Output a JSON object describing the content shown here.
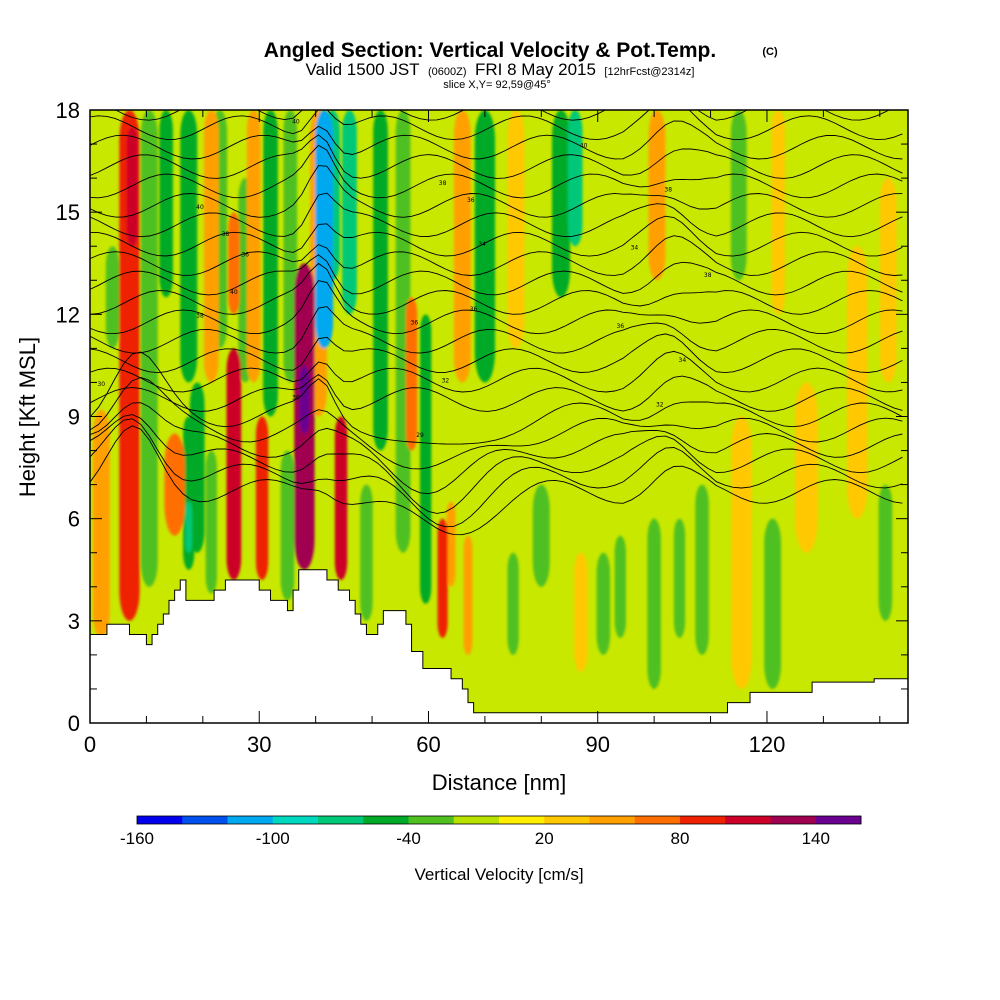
{
  "chart_data": {
    "type": "heatmap",
    "title": "Angled Section: Vertical Velocity & Pot.Temp.",
    "title_unit": "(C)",
    "subtitle": {
      "valid_label": "Valid 1500 JST",
      "utc": "(0600Z)",
      "date": "FRI 8 May 2015",
      "forecast": "[12hrFcst@2314z]"
    },
    "slice_label": "slice X,Y= 92,59@45°",
    "xlabel": "Distance [nm]",
    "ylabel": "Height [Kft MSL]",
    "xlim": [
      0,
      145
    ],
    "ylim": [
      0,
      18
    ],
    "x_ticks": [
      0,
      30,
      60,
      90,
      120
    ],
    "y_ticks": [
      0,
      3,
      6,
      9,
      12,
      15,
      18
    ],
    "colorbar": {
      "title": "Vertical Velocity [cm/s]",
      "range": [
        -160,
        160
      ],
      "step": 20,
      "tick_values": [
        -160,
        -100,
        -40,
        20,
        80,
        140
      ],
      "tick_labels": [
        "-160",
        "-100",
        "-40",
        "20",
        "80",
        "140"
      ],
      "colors": [
        "#0000ee",
        "#0050ee",
        "#00a8f0",
        "#00d8c0",
        "#00c878",
        "#00aa28",
        "#50c020",
        "#b8e000",
        "#ffee00",
        "#ffc800",
        "#ffa000",
        "#ff6e00",
        "#ee2200",
        "#cc0028",
        "#a00050",
        "#6a0090"
      ]
    },
    "terrain": {
      "x": [
        0,
        3,
        3,
        7,
        7,
        10,
        10,
        11,
        11,
        12,
        12,
        13,
        13,
        14,
        14,
        15,
        15,
        16,
        16,
        17,
        17,
        22,
        22,
        24,
        24,
        26,
        26,
        30,
        30,
        32,
        32,
        35,
        35,
        36,
        36,
        37,
        37,
        42,
        42,
        44,
        44,
        46,
        46,
        47,
        47,
        48,
        48,
        49,
        49,
        51,
        51,
        52,
        52,
        53,
        53,
        56,
        56,
        57,
        57,
        59,
        59,
        64,
        64,
        66,
        66,
        67,
        67,
        68,
        68,
        113,
        113,
        117,
        117,
        128,
        128,
        139,
        139,
        145
      ],
      "y": [
        2.6,
        2.6,
        2.9,
        2.9,
        2.6,
        2.6,
        2.3,
        2.3,
        2.6,
        2.6,
        2.9,
        2.9,
        3.2,
        3.2,
        3.6,
        3.6,
        3.9,
        3.9,
        4.2,
        4.2,
        3.6,
        3.6,
        3.9,
        3.9,
        4.2,
        4.2,
        4.2,
        4.2,
        3.9,
        3.9,
        3.6,
        3.6,
        3.3,
        3.3,
        3.9,
        3.9,
        4.5,
        4.5,
        4.2,
        4.2,
        3.9,
        3.9,
        3.6,
        3.6,
        3.2,
        3.2,
        2.9,
        2.9,
        2.6,
        2.6,
        2.9,
        2.9,
        3.3,
        3.3,
        3.3,
        3.3,
        2.9,
        2.9,
        2.1,
        2.1,
        1.6,
        1.6,
        1.3,
        1.3,
        1.0,
        1.0,
        0.6,
        0.6,
        0.3,
        0.3,
        0.6,
        0.6,
        0.9,
        0.9,
        1.2,
        1.2,
        1.3,
        1.3
      ]
    },
    "features": [
      {
        "x": 2,
        "y0": 2.5,
        "y1": 9.2,
        "w": 1.5,
        "v": 50
      },
      {
        "x": 7,
        "y0": 3,
        "y1": 18,
        "w": 1.8,
        "v": 90
      },
      {
        "x": 7.5,
        "y0": 14,
        "y1": 17.5,
        "w": 1.0,
        "v": 100
      },
      {
        "x": 4,
        "y0": 11,
        "y1": 14,
        "w": 1.2,
        "v": -25
      },
      {
        "x": 10.5,
        "y0": 4,
        "y1": 18,
        "w": 1.5,
        "v": -40
      },
      {
        "x": 13.5,
        "y0": 12.5,
        "y1": 18,
        "w": 1.2,
        "v": -55
      },
      {
        "x": 15,
        "y0": 5.5,
        "y1": 8.5,
        "w": 1.8,
        "v": 70
      },
      {
        "x": 17.5,
        "y0": 4.5,
        "y1": 9,
        "w": 1.0,
        "v": -60
      },
      {
        "x": 17.5,
        "y0": 5,
        "y1": 6.5,
        "w": 0.6,
        "v": -80
      },
      {
        "x": 17.5,
        "y0": 10,
        "y1": 18,
        "w": 1.5,
        "v": -50
      },
      {
        "x": 19,
        "y0": 5,
        "y1": 10,
        "w": 1.3,
        "v": -45
      },
      {
        "x": 21.5,
        "y0": 10,
        "y1": 18,
        "w": 1.3,
        "v": 45
      },
      {
        "x": 21.5,
        "y0": 3.8,
        "y1": 8,
        "w": 1.0,
        "v": -30
      },
      {
        "x": 23,
        "y0": 11,
        "y1": 18,
        "w": 1.3,
        "v": -40
      },
      {
        "x": 25.5,
        "y0": 4.2,
        "y1": 11,
        "w": 1.3,
        "v": 110
      },
      {
        "x": 25.5,
        "y0": 12,
        "y1": 15,
        "w": 1.0,
        "v": 70
      },
      {
        "x": 27.5,
        "y0": 10,
        "y1": 16,
        "w": 1.2,
        "v": -35
      },
      {
        "x": 30.5,
        "y0": 4.2,
        "y1": 9,
        "w": 1.1,
        "v": 80
      },
      {
        "x": 29,
        "y0": 10,
        "y1": 18,
        "w": 1.2,
        "v": 55
      },
      {
        "x": 32,
        "y0": 9,
        "y1": 18,
        "w": 1.3,
        "v": -45
      },
      {
        "x": 35.5,
        "y0": 10,
        "y1": 18,
        "w": 1.2,
        "v": -40
      },
      {
        "x": 35,
        "y0": 3.6,
        "y1": 8,
        "w": 1.2,
        "v": -30
      },
      {
        "x": 38,
        "y0": 4.5,
        "y1": 13.5,
        "w": 1.8,
        "v": 130
      },
      {
        "x": 38,
        "y0": 8.5,
        "y1": 10.5,
        "w": 0.9,
        "v": 150
      },
      {
        "x": 40.5,
        "y0": 9,
        "y1": 18,
        "w": 1.5,
        "v": 50
      },
      {
        "x": 41.5,
        "y0": 11,
        "y1": 18,
        "w": 1.6,
        "v": -110
      },
      {
        "x": 43,
        "y0": 13,
        "y1": 18,
        "w": 1.3,
        "v": -70
      },
      {
        "x": 44.5,
        "y0": 4.2,
        "y1": 9,
        "w": 1.1,
        "v": 110
      },
      {
        "x": 46,
        "y0": 12,
        "y1": 18,
        "w": 1.3,
        "v": -65
      },
      {
        "x": 49,
        "y0": 3,
        "y1": 7,
        "w": 1.1,
        "v": -40
      },
      {
        "x": 51.5,
        "y0": 8,
        "y1": 18,
        "w": 1.3,
        "v": -45
      },
      {
        "x": 55.5,
        "y0": 5,
        "y1": 18,
        "w": 1.3,
        "v": -30
      },
      {
        "x": 57,
        "y0": 8,
        "y1": 12.5,
        "w": 1.0,
        "v": 70
      },
      {
        "x": 59.5,
        "y0": 3.5,
        "y1": 12,
        "w": 1.0,
        "v": -50
      },
      {
        "x": 62.5,
        "y0": 2.5,
        "y1": 6,
        "w": 0.9,
        "v": 90
      },
      {
        "x": 64,
        "y0": 4,
        "y1": 6.5,
        "w": 0.8,
        "v": 55
      },
      {
        "x": 66,
        "y0": 10,
        "y1": 18,
        "w": 1.5,
        "v": 40
      },
      {
        "x": 67,
        "y0": 2,
        "y1": 5.5,
        "w": 0.8,
        "v": 40
      },
      {
        "x": 70,
        "y0": 10,
        "y1": 18,
        "w": 1.8,
        "v": -45
      },
      {
        "x": 75,
        "y0": 2,
        "y1": 5,
        "w": 1.0,
        "v": -30
      },
      {
        "x": 75.5,
        "y0": 11,
        "y1": 18,
        "w": 1.5,
        "v": 35
      },
      {
        "x": 80,
        "y0": 4,
        "y1": 7,
        "w": 1.5,
        "v": -30
      },
      {
        "x": 83.5,
        "y0": 12.5,
        "y1": 18,
        "w": 1.6,
        "v": -55
      },
      {
        "x": 86,
        "y0": 14,
        "y1": 18,
        "w": 1.3,
        "v": -70
      },
      {
        "x": 87,
        "y0": 1.5,
        "y1": 5,
        "w": 1.2,
        "v": 35
      },
      {
        "x": 91,
        "y0": 2,
        "y1": 5,
        "w": 1.2,
        "v": -35
      },
      {
        "x": 94,
        "y0": 2.5,
        "y1": 5.5,
        "w": 1.0,
        "v": -40
      },
      {
        "x": 100,
        "y0": 1,
        "y1": 6,
        "w": 1.2,
        "v": -40
      },
      {
        "x": 100.5,
        "y0": 13,
        "y1": 18,
        "w": 1.5,
        "v": 40
      },
      {
        "x": 104.5,
        "y0": 2.5,
        "y1": 6,
        "w": 1.0,
        "v": -35
      },
      {
        "x": 108.5,
        "y0": 2,
        "y1": 7,
        "w": 1.2,
        "v": -30
      },
      {
        "x": 115.5,
        "y0": 1,
        "y1": 9,
        "w": 1.8,
        "v": 35
      },
      {
        "x": 115,
        "y0": 13,
        "y1": 18,
        "w": 1.4,
        "v": -40
      },
      {
        "x": 121,
        "y0": 1,
        "y1": 6,
        "w": 1.5,
        "v": -30
      },
      {
        "x": 122,
        "y0": 12,
        "y1": 18,
        "w": 1.2,
        "v": 35
      },
      {
        "x": 127,
        "y0": 5,
        "y1": 10,
        "w": 2.0,
        "v": 30
      },
      {
        "x": 136,
        "y0": 6,
        "y1": 14,
        "w": 1.8,
        "v": 30
      },
      {
        "x": 141,
        "y0": 3,
        "y1": 7,
        "w": 1.2,
        "v": -40
      },
      {
        "x": 141.5,
        "y0": 10,
        "y1": 16,
        "w": 1.5,
        "v": 35
      }
    ],
    "contour_labels": [
      {
        "x": 2,
        "y": 9.9,
        "text": "30"
      },
      {
        "x": 19.5,
        "y": 15.1,
        "text": "40"
      },
      {
        "x": 24,
        "y": 14.3,
        "text": "38"
      },
      {
        "x": 27.5,
        "y": 13.7,
        "text": "36"
      },
      {
        "x": 25.5,
        "y": 12.6,
        "text": "40"
      },
      {
        "x": 19.5,
        "y": 11.9,
        "text": "38"
      },
      {
        "x": 36.5,
        "y": 17.6,
        "text": "40"
      },
      {
        "x": 36.5,
        "y": 9.5,
        "text": "30"
      },
      {
        "x": 58.5,
        "y": 8.4,
        "text": "29"
      },
      {
        "x": 57.5,
        "y": 11.7,
        "text": "36"
      },
      {
        "x": 63,
        "y": 10,
        "text": "32"
      },
      {
        "x": 62.5,
        "y": 15.8,
        "text": "38"
      },
      {
        "x": 67.5,
        "y": 15.3,
        "text": "36"
      },
      {
        "x": 69.5,
        "y": 14,
        "text": "34"
      },
      {
        "x": 68,
        "y": 12.1,
        "text": "36"
      },
      {
        "x": 87.5,
        "y": 16.9,
        "text": "40"
      },
      {
        "x": 102.5,
        "y": 15.6,
        "text": "38"
      },
      {
        "x": 96.5,
        "y": 13.9,
        "text": "34"
      },
      {
        "x": 109.5,
        "y": 13.1,
        "text": "38"
      },
      {
        "x": 94,
        "y": 11.6,
        "text": "36"
      },
      {
        "x": 105,
        "y": 10.6,
        "text": "34"
      },
      {
        "x": 101,
        "y": 9.3,
        "text": "32"
      }
    ],
    "grid": false
  }
}
